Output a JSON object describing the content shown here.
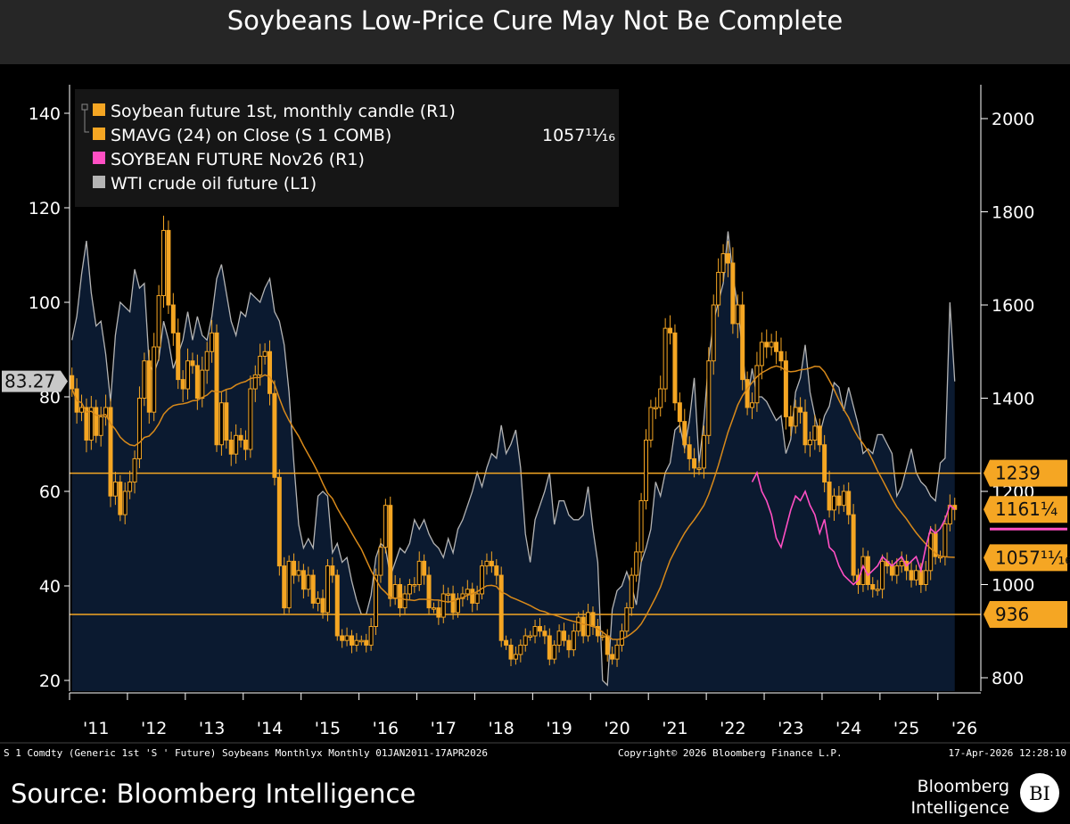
{
  "title": "Soybeans Low-Price Cure May Not Be Complete",
  "footer": {
    "security": "S 1 Comdty (Generic 1st 'S ' Future) Soybeans Monthlyx Monthly 01JAN2011-17APR2026",
    "copyright": "Copyright© 2026 Bloomberg Finance L.P.",
    "timestamp": "17-Apr-2026 12:28:10",
    "source": "Source: Bloomberg Intelligence",
    "logo_line1": "Bloomberg",
    "logo_line2": "Intelligence",
    "logo_badge": "BI"
  },
  "chart_data": {
    "type": "line",
    "title": "Soybeans Low-Price Cure May Not Be Complete",
    "x_start": "2011-01",
    "x_end": "2026-04",
    "x_frequency": "monthly",
    "x_tick_labels": [
      "'11",
      "'12",
      "'13",
      "'14",
      "'15",
      "'16",
      "'17",
      "'18",
      "'19",
      "'20",
      "'21",
      "'22",
      "'23",
      "'24",
      "'25",
      "'26"
    ],
    "left_axis": {
      "ylim": [
        20,
        145
      ],
      "ticks": [
        "20",
        "40",
        "60",
        "80",
        "100",
        "120",
        "140"
      ],
      "last_value_label": "83.27"
    },
    "right_axis": {
      "ylim": [
        780,
        2050
      ],
      "ticks": [
        "800",
        "1000",
        "1200",
        "1400",
        "1600",
        "1800",
        "2000"
      ]
    },
    "legend": [
      {
        "label": "Soybean future 1st, monthly candle (R1)",
        "color": "#f5a623"
      },
      {
        "label": "SMAVG (24)  on Close (S 1 COMB)",
        "color": "#f5a623",
        "value": "1057¹¹⁄₁₆"
      },
      {
        "label": "SOYBEAN FUTURE Nov26 (R1)",
        "color": "#ff4fc3"
      },
      {
        "label": "WTI crude oil future (L1)",
        "color": "#b4b4b4"
      }
    ],
    "legend_placement": "top-left",
    "series": [
      {
        "name": "Soybean future 1st, monthly candle (R1)",
        "axis": "right",
        "style": "candle",
        "color": "#f5a623",
        "close": [
          1420,
          1370,
          1380,
          1310,
          1380,
          1320,
          1360,
          1380,
          1190,
          1220,
          1150,
          1200,
          1220,
          1270,
          1400,
          1480,
          1370,
          1510,
          1620,
          1760,
          1600,
          1540,
          1440,
          1420,
          1480,
          1470,
          1400,
          1460,
          1500,
          1540,
          1300,
          1390,
          1310,
          1280,
          1320,
          1310,
          1290,
          1420,
          1450,
          1490,
          1500,
          1410,
          1230,
          1040,
          950,
          1050,
          1020,
          1030,
          990,
          1020,
          960,
          970,
          940,
          1040,
          1020,
          890,
          880,
          890,
          870,
          880,
          880,
          870,
          910,
          1020,
          1080,
          1170,
          970,
          1000,
          950,
          980,
          1000,
          1000,
          1050,
          1020,
          950,
          950,
          930,
          980,
          980,
          940,
          970,
          980,
          990,
          960,
          980,
          1040,
          1050,
          1040,
          1020,
          880,
          870,
          840,
          850,
          870,
          890,
          890,
          910,
          900,
          890,
          840,
          870,
          900,
          880,
          860,
          900,
          930,
          890,
          940,
          910,
          890,
          890,
          850,
          840,
          870,
          900,
          950,
          1020,
          1070,
          1180,
          1310,
          1380,
          1380,
          1420,
          1550,
          1540,
          1390,
          1350,
          1300,
          1270,
          1250,
          1250,
          1320,
          1480,
          1600,
          1670,
          1710,
          1690,
          1560,
          1600,
          1440,
          1380,
          1390,
          1470,
          1520,
          1510,
          1520,
          1500,
          1480,
          1360,
          1340,
          1380,
          1370,
          1300,
          1310,
          1340,
          1300,
          1220,
          1160,
          1190,
          1170,
          1200,
          1150,
          1020,
          1000,
          1060,
          1000,
          990,
          990,
          1050,
          1040,
          1020,
          1040,
          1050,
          1030,
          1010,
          1030,
          1000,
          1030,
          1110,
          1060,
          1060,
          1130,
          1170,
          1161.25
        ]
      },
      {
        "name": "SMAVG (24)  on Close (S 1 COMB)",
        "axis": "right",
        "style": "line",
        "color": "#d98a1a",
        "last": 1057.6875
      },
      {
        "name": "SOYBEAN FUTURE Nov26 (R1)",
        "axis": "right",
        "style": "line",
        "color": "#ff4fc3",
        "start": "2022-10",
        "values": [
          1220,
          1240,
          1200,
          1180,
          1150,
          1100,
          1080,
          1120,
          1160,
          1190,
          1180,
          1200,
          1170,
          1150,
          1110,
          1140,
          1080,
          1070,
          1040,
          1020,
          1010,
          1000,
          1010,
          1040,
          1020,
          1030,
          1040,
          1060,
          1050,
          1040,
          1050,
          1060,
          1040,
          1050,
          1060,
          1030,
          1080,
          1120,
          1110,
          1120,
          1140,
          1170,
          1161.25
        ]
      },
      {
        "name": "WTI crude oil future (L1)",
        "axis": "left",
        "style": "area",
        "color": "#b4b4b4",
        "fill": "#0b1a30",
        "values": [
          92,
          97,
          106,
          113,
          102,
          95,
          96,
          89,
          79,
          93,
          100,
          99,
          98,
          107,
          103,
          104,
          87,
          85,
          88,
          96,
          92,
          86,
          89,
          92,
          98,
          92,
          97,
          93,
          92,
          97,
          105,
          108,
          102,
          96,
          93,
          98,
          97,
          102,
          101,
          100,
          103,
          105,
          98,
          96,
          91,
          81,
          66,
          53,
          48,
          50,
          48,
          59,
          60,
          59,
          47,
          49,
          45,
          46,
          41,
          37,
          34,
          34,
          38,
          46,
          49,
          48,
          42,
          45,
          48,
          47,
          49,
          54,
          52,
          54,
          51,
          49,
          48,
          46,
          50,
          47,
          52,
          54,
          57,
          60,
          64,
          61,
          65,
          68,
          67,
          74,
          68,
          70,
          73,
          65,
          51,
          45,
          54,
          57,
          60,
          64,
          53,
          58,
          58,
          55,
          54,
          54,
          55,
          61,
          52,
          45,
          20,
          19,
          35,
          39,
          40,
          43,
          40,
          36,
          45,
          48,
          52,
          62,
          59,
          64,
          66,
          73,
          74,
          69,
          75,
          84,
          66,
          75,
          88,
          96,
          100,
          104,
          115,
          106,
          99,
          90,
          79,
          86,
          80,
          80,
          79,
          77,
          75,
          76,
          68,
          71,
          81,
          84,
          91,
          81,
          76,
          72,
          76,
          78,
          83,
          82,
          77,
          82,
          78,
          74,
          68,
          69,
          68,
          72,
          72,
          70,
          68,
          59,
          61,
          65,
          69,
          64,
          62,
          61,
          59,
          58,
          66,
          67,
          100,
          83.27
        ]
      }
    ],
    "horizontal_lines": [
      {
        "value": 1239,
        "axis": "right",
        "color": "#f5a623"
      },
      {
        "value": 936,
        "axis": "right",
        "color": "#f5a623"
      }
    ],
    "right_value_labels": [
      {
        "text": "1239",
        "value": 1239,
        "color": "#f5a623"
      },
      {
        "text": "1161¼",
        "value": 1161.25,
        "color": "#f5a623"
      },
      {
        "text": "1057¹¹⁄₁₆",
        "value": 1057.6875,
        "color": "#f5a623"
      },
      {
        "text": "936",
        "value": 936,
        "color": "#f5a623"
      }
    ],
    "grid": false
  }
}
